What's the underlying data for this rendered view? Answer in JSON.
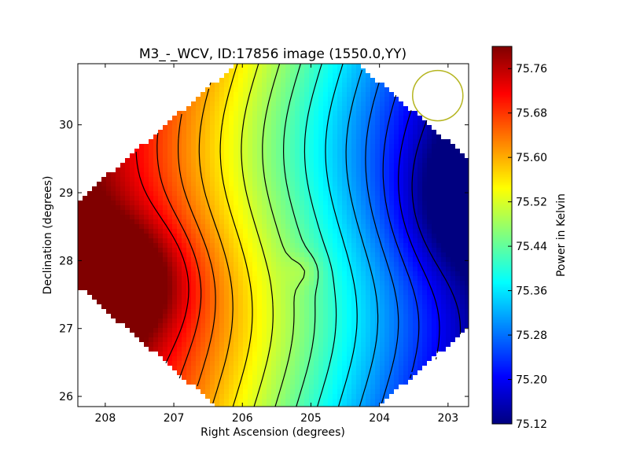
{
  "chart_data": {
    "type": "heatmap",
    "title": "M3_-_WCV, ID:17856 image (1550.0,YY)",
    "xlabel": "Right Ascension (degrees)",
    "ylabel": "Declination (degrees)",
    "xlim": [
      208.4,
      202.7
    ],
    "ylim": [
      25.85,
      30.9
    ],
    "x_ticks": [
      "208",
      "207",
      "206",
      "205",
      "204",
      "203"
    ],
    "x_tick_values": [
      208,
      207,
      206,
      205,
      204,
      203
    ],
    "y_ticks": [
      "26",
      "27",
      "28",
      "29",
      "30"
    ],
    "y_tick_values": [
      26,
      27,
      28,
      29,
      30
    ],
    "colorbar": {
      "label": "Power in Kelvin",
      "min": 75.12,
      "max": 75.8,
      "ticks": [
        "75.76",
        "75.68",
        "75.60",
        "75.52",
        "75.44",
        "75.36",
        "75.28",
        "75.20",
        "75.12"
      ],
      "tick_values": [
        75.76,
        75.68,
        75.6,
        75.52,
        75.44,
        75.36,
        75.28,
        75.2,
        75.12
      ],
      "colormap": "jet"
    },
    "field_shape": "octagon",
    "contours": "black",
    "grid": false,
    "beam_circle": {
      "color": "#b5b520",
      "ra": 203.15,
      "dec": 30.43
    },
    "features": [
      {
        "kind": "maximum",
        "ra": 207.8,
        "dec": 27.7,
        "value": 75.78
      },
      {
        "kind": "minimum",
        "ra": 202.8,
        "dec": 28.8,
        "value": 75.13
      },
      {
        "kind": "local-extremum",
        "ra": 205.1,
        "dec": 27.85,
        "value": 75.42
      }
    ]
  }
}
